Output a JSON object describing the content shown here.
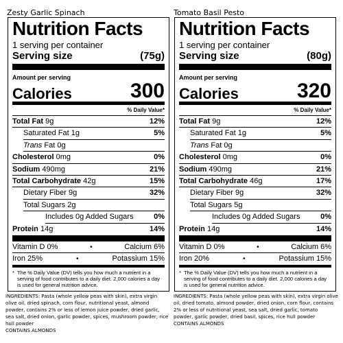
{
  "labels": [
    {
      "product_name": "Zesty Garlic Spinach",
      "heading": "Nutrition Facts",
      "servings": "1 serving per container",
      "serving_size_label": "Serving size",
      "serving_size_value": "(75g)",
      "amount_per_serving": "Amount per serving",
      "calories_label": "Calories",
      "calories_value": "300",
      "dv_header": "% Daily Value*",
      "total_fat": {
        "label": "Total Fat",
        "amount": "9g",
        "dv": "12%"
      },
      "saturated_fat": {
        "label": "Saturated Fat",
        "amount": "1g",
        "dv": "5%"
      },
      "trans_fat": {
        "label_italic": "Trans",
        "label_rest": "Fat",
        "amount": "0g"
      },
      "cholesterol": {
        "label": "Cholesterol",
        "amount": "0mg",
        "dv": "0%"
      },
      "sodium": {
        "label": "Sodium",
        "amount": "490mg",
        "dv": "21%"
      },
      "total_carbohydrate": {
        "label": "Total Carbohydrate",
        "amount": "42g",
        "dv": "15%"
      },
      "dietary_fiber": {
        "label": "Dietary Fiber",
        "amount": "9g",
        "dv": "32%"
      },
      "total_sugars": {
        "label": "Total Sugars",
        "amount": "2g"
      },
      "added_sugars": {
        "label_pre": "Includes",
        "amount": "0g",
        "label_post": "Added Sugars",
        "dv": "0%"
      },
      "protein": {
        "label": "Protein",
        "amount": "14g",
        "dv": "14%"
      },
      "vitamin_d": {
        "label": "Vitamin D",
        "dv": "0%"
      },
      "calcium": {
        "label": "Calcium",
        "dv": "6%"
      },
      "iron": {
        "label": "Iron",
        "dv": "25%"
      },
      "potassium": {
        "label": "Potassium",
        "dv": "15%"
      },
      "bullet": "•",
      "footnote_star": "*",
      "footnote": "The % Daily Value (DV) tells you how much a nutrient in a serving of food contributes to a daily diet. 2,000 calories a day is used for general nutrition advice.",
      "ingredients": "INGREDIENTS: Pasta (whole yellow peas with skin), extra virgin olive oil, dried spinach, corn flour, nutritional yeast, almond powder, contains 2% or less of lemon juice powder, dried garlic, sea salt, dried onion, garlic powder, spices, mushroom powder, rice hull powder",
      "allergen": "CONTAINS ALMONDS"
    },
    {
      "product_name": "Tomato Basil Pesto",
      "heading": "Nutrition Facts",
      "servings": "1 serving per container",
      "serving_size_label": "Serving size",
      "serving_size_value": "(80g)",
      "amount_per_serving": "Amount per serving",
      "calories_label": "Calories",
      "calories_value": "320",
      "dv_header": "% Daily Value*",
      "total_fat": {
        "label": "Total Fat",
        "amount": "9g",
        "dv": "12%"
      },
      "saturated_fat": {
        "label": "Saturated Fat",
        "amount": "1g",
        "dv": "5%"
      },
      "trans_fat": {
        "label_italic": "Trans",
        "label_rest": "Fat",
        "amount": "0g"
      },
      "cholesterol": {
        "label": "Cholesterol",
        "amount": "0mg",
        "dv": "0%"
      },
      "sodium": {
        "label": "Sodium",
        "amount": "490mg",
        "dv": "21%"
      },
      "total_carbohydrate": {
        "label": "Total Carbohydrate",
        "amount": "46g",
        "dv": "17%"
      },
      "dietary_fiber": {
        "label": "Dietary Fiber",
        "amount": "9g",
        "dv": "32%"
      },
      "total_sugars": {
        "label": "Total Sugars",
        "amount": "5g"
      },
      "added_sugars": {
        "label_pre": "Includes",
        "amount": "0g",
        "label_post": "Added Sugars",
        "dv": "0%"
      },
      "protein": {
        "label": "Protein",
        "amount": "14g",
        "dv": "14%"
      },
      "vitamin_d": {
        "label": "Vitamin D",
        "dv": "0%"
      },
      "calcium": {
        "label": "Calcium",
        "dv": "6%"
      },
      "iron": {
        "label": "Iron",
        "dv": "20%"
      },
      "potassium": {
        "label": "Potassium",
        "dv": "15%"
      },
      "bullet": "•",
      "footnote_star": "*",
      "footnote": "The % Daily Value (DV) tells you how much a nutrient in a serving of food contributes to a daily diet. 2,000 calories a day is used for general nutrition advice.",
      "ingredients": "INGREDIENTS: Pasta (whole yellow peas with skin), extra virgin olive oil, dried tomato, almond powder, dried onion, corn flour, contains 2% or less of nutritional yeast, sea salt, dried garlic, tomato powder, garlic powder, dried basil, spices, rice hull powder",
      "allergen": "CONTAINS ALMONDS"
    }
  ]
}
